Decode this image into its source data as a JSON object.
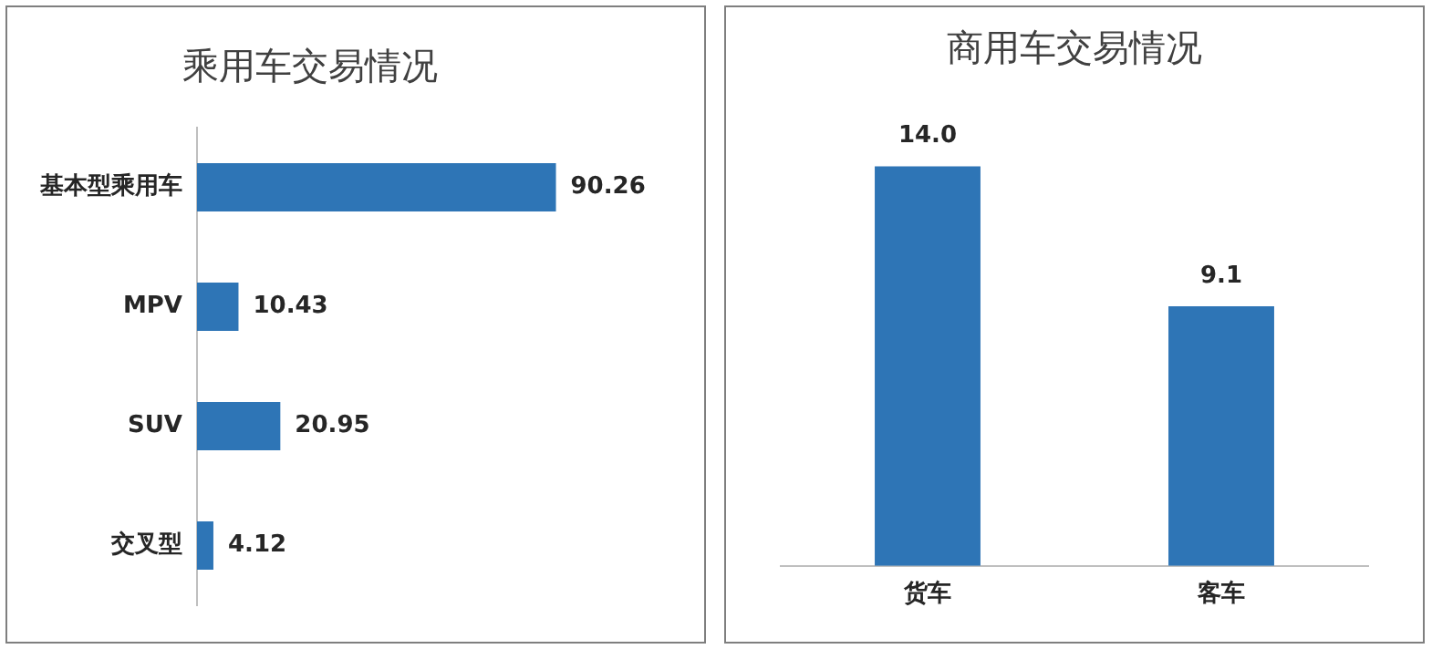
{
  "chart_data": [
    {
      "type": "bar",
      "title": "乘用车交易情况",
      "orientation": "horizontal",
      "categories": [
        "基本型乘用车",
        "MPV",
        "SUV",
        "交叉型"
      ],
      "values": [
        90.26,
        10.43,
        20.95,
        4.12
      ],
      "color": "#2e75b6",
      "data_labels": true,
      "legend": false
    },
    {
      "type": "bar",
      "title": "商用车交易情况",
      "categories": [
        "货车",
        "客车"
      ],
      "values": [
        14.0,
        9.1
      ],
      "value_labels": [
        "14.0",
        "9.1"
      ],
      "color": "#2e75b6",
      "legend": false
    }
  ]
}
